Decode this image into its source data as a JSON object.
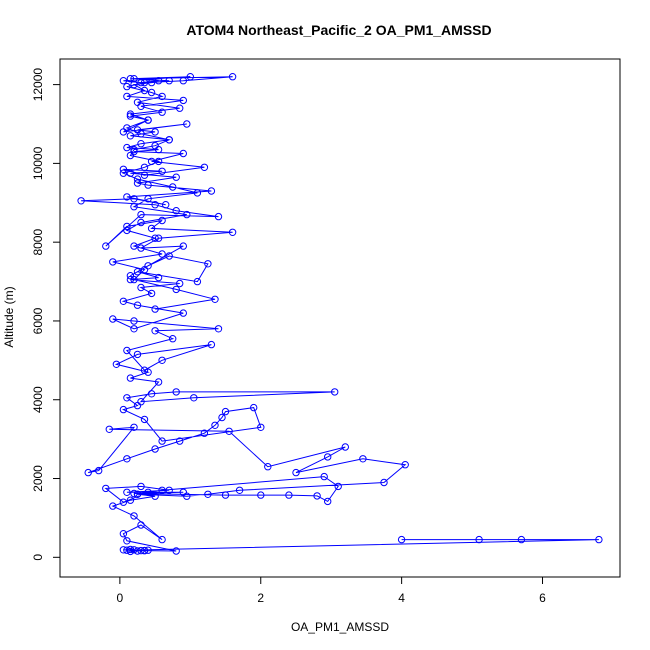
{
  "chart_data": {
    "type": "scatter",
    "title": "ATOM4 Northeast_Pacific_2 OA_PM1_AMSSD",
    "xlabel": "OA_PM1_AMSSD",
    "ylabel": "Altitude (m)",
    "xlim": [
      -0.85,
      7.1
    ],
    "ylim": [
      -500,
      12650
    ],
    "xticks": [
      "0",
      "2",
      "4",
      "6"
    ],
    "yticks": [
      "0",
      "2000",
      "4000",
      "6000",
      "8000",
      "10000",
      "12000"
    ],
    "grid": false,
    "legend": "none",
    "marker": "open-circle",
    "connected": true,
    "color": "#0000ff",
    "series": [
      {
        "x": [
          0.15,
          0.35,
          0.8,
          0.1,
          0.05,
          0.3,
          0.6,
          0.2,
          -0.1,
          0.15,
          0.5,
          0.25,
          0.4,
          0.05,
          -0.2,
          0.3,
          0.7,
          0.1,
          0.9,
          0.2,
          1.5,
          2.0,
          2.4,
          2.8,
          2.95,
          3.1,
          2.9,
          0.6,
          0.25,
          0.95,
          1.25,
          1.7,
          3.75,
          4.05,
          3.45,
          2.5,
          2.95,
          3.2,
          2.1,
          1.55,
          -0.15,
          0.2,
          -0.3,
          -0.45,
          0.1,
          0.5,
          0.85,
          1.2,
          1.35,
          1.45,
          1.5,
          1.9,
          2.0,
          0.6,
          0.35,
          0.05,
          0.25,
          0.1,
          0.45,
          0.8,
          3.05,
          1.05,
          0.3,
          0.55,
          0.15,
          0.4,
          -0.05,
          0.25,
          1.3,
          0.6,
          0.35,
          0.1,
          0.75,
          0.5,
          1.4,
          0.2,
          -0.1,
          0.2,
          0.9,
          0.25,
          0.05,
          0.45,
          0.3,
          0.85,
          0.15,
          0.55,
          0.25,
          1.1,
          1.25,
          0.7,
          0.4,
          0.15,
          0.9,
          0.3,
          0.55,
          1.6,
          0.45,
          0.6,
          0.1,
          -0.2,
          0.3,
          1.4,
          0.8,
          0.5,
          -0.55,
          0.2,
          0.65,
          0.1,
          1.3,
          0.4,
          0.25,
          0.8,
          0.15,
          0.6,
          0.05,
          0.35,
          1.2,
          0.45,
          0.9,
          0.2,
          0.55,
          0.1,
          0.3,
          0.7,
          0.15,
          0.5,
          0.25,
          0.95,
          0.05,
          0.4,
          0.15,
          0.6,
          0.3,
          0.9,
          0.1,
          0.35,
          0.2,
          0.45,
          0.7,
          0.15,
          1.0,
          0.05,
          0.3,
          0.55,
          0.2,
          1.6,
          0.9,
          0.35,
          0.1,
          0.45,
          0.6,
          0.25,
          0.85,
          0.15,
          0.4,
          0.1,
          0.3,
          0.7,
          0.5,
          0.2,
          0.15,
          0.55,
          0.35,
          0.05,
          0.25,
          0.75,
          1.1,
          0.4,
          0.2,
          0.95,
          0.3,
          0.1,
          0.5,
          0.2,
          0.6,
          -0.1,
          0.35,
          0.2,
          0.8,
          1.35,
          0.5
        ],
        "y": [
          150,
          170,
          160,
          420,
          600,
          820,
          450,
          1050,
          1300,
          1450,
          1550,
          1600,
          1650,
          1400,
          1750,
          1800,
          1700,
          1650,
          1650,
          1620,
          1580,
          1580,
          1580,
          1560,
          1420,
          1800,
          2050,
          1700,
          1600,
          1550,
          1600,
          1700,
          1900,
          2350,
          2500,
          2150,
          2550,
          2800,
          2300,
          3200,
          3250,
          3300,
          2200,
          2150,
          2500,
          2750,
          2950,
          3150,
          3350,
          3550,
          3700,
          3800,
          3300,
          2950,
          3500,
          3750,
          3850,
          4050,
          4150,
          4200,
          4200,
          4050,
          3950,
          4450,
          4550,
          4700,
          4900,
          5150,
          5400,
          5000,
          4750,
          5250,
          5550,
          5750,
          5800,
          6000,
          6050,
          5800,
          6200,
          6400,
          6500,
          6700,
          6850,
          6950,
          7050,
          7100,
          7250,
          7000,
          7450,
          7650,
          7400,
          7150,
          7900,
          7850,
          8100,
          8250,
          8350,
          8550,
          8400,
          7900,
          8700,
          8650,
          8800,
          8950,
          9050,
          9100,
          8950,
          9150,
          9300,
          9450,
          9500,
          9650,
          9750,
          9800,
          9850,
          9700,
          9900,
          10050,
          10250,
          10300,
          10350,
          10400,
          10500,
          10600,
          10700,
          10800,
          10850,
          11000,
          10800,
          11100,
          11200,
          11300,
          11450,
          11600,
          11700,
          11850,
          12000,
          12050,
          12100,
          12150,
          12200,
          12100,
          12050,
          12100,
          12150,
          12200,
          12100,
          12050,
          11950,
          11800,
          11700,
          11550,
          11400,
          11250,
          11100,
          10900,
          10750,
          10600,
          10450,
          10350,
          10200,
          10050,
          9900,
          9750,
          9600,
          9400,
          9250,
          9100,
          8900,
          8700,
          8500,
          8300,
          8100,
          7900,
          7700,
          7500,
          7300,
          7050,
          6800,
          6550,
          6300
        ]
      },
      {
        "x": [
          4.0,
          5.1,
          5.7,
          6.8,
          0.1,
          0.2,
          0.3,
          0.15,
          0.25,
          0.05,
          0.4,
          0.35
        ],
        "y": [
          450,
          450,
          450,
          450,
          180,
          190,
          170,
          200,
          160,
          190,
          180,
          170
        ]
      }
    ]
  }
}
